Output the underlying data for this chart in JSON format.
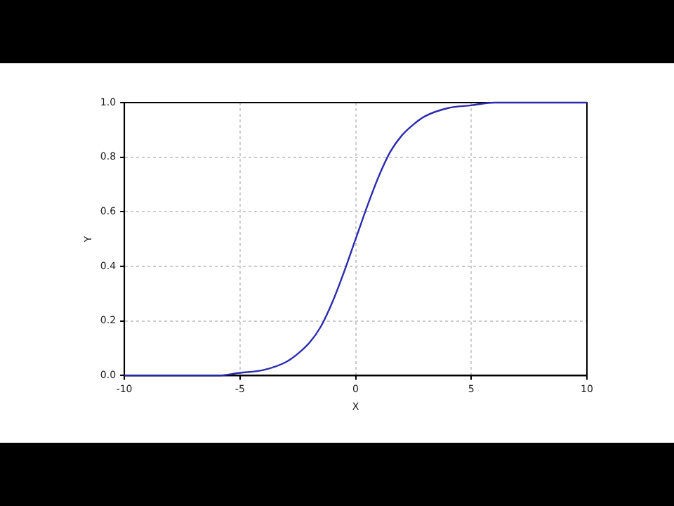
{
  "chart_data": {
    "type": "line",
    "xlabel": "X",
    "ylabel": "Y",
    "series": [
      {
        "color": "#2b2bb0",
        "x": [
          -10,
          -8,
          -6,
          -5,
          -4,
          -3,
          -2.5,
          -2,
          -1.5,
          -1,
          -0.5,
          0,
          0.5,
          1,
          1.5,
          2,
          2.5,
          3,
          4,
          5,
          6,
          8,
          10
        ],
        "values": [
          0,
          0,
          0,
          0.01,
          0.02,
          0.05,
          0.08,
          0.12,
          0.18,
          0.27,
          0.38,
          0.5,
          0.62,
          0.73,
          0.82,
          0.88,
          0.92,
          0.95,
          0.98,
          0.99,
          1,
          1,
          1
        ]
      }
    ],
    "xlim": [
      -10,
      10
    ],
    "xticks": [
      -10,
      -5,
      0,
      5,
      10
    ],
    "ylim": [
      0,
      1
    ],
    "yticks": [
      {
        "value": 0,
        "label": "0.0"
      },
      {
        "value": 0.2,
        "label": "0.2"
      },
      {
        "value": 0.4,
        "label": "0.4"
      },
      {
        "value": 0.6,
        "label": "0.6"
      },
      {
        "value": 0.8,
        "label": "0.8"
      },
      {
        "value": 1,
        "label": "1.0"
      }
    ],
    "grid": true,
    "legend": false,
    "marker": "none",
    "line_style": "solid"
  }
}
